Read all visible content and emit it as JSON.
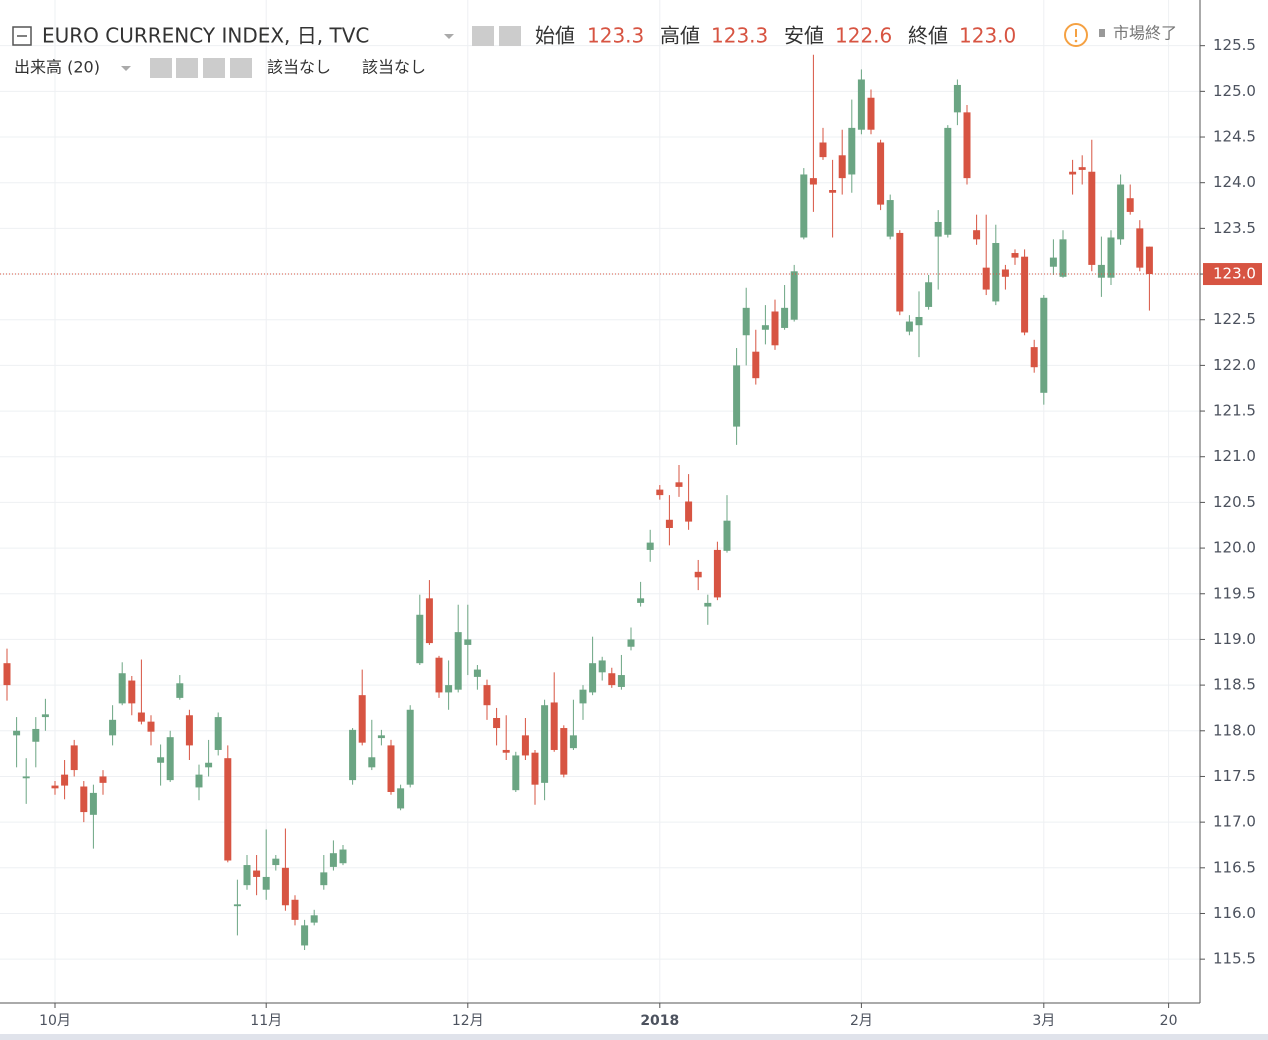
{
  "chart_data": {
    "type": "candlestick",
    "legend": {
      "title": "EURO CURRENCY INDEX, 日, TVC",
      "open_label": "始値",
      "open": "123.3",
      "high_label": "高値",
      "high": "123.3",
      "low_label": "安値",
      "low": "122.6",
      "close_label": "終値",
      "close": "123.0",
      "status": "市場終了",
      "volume": "出来高 (20)",
      "volume_values": [
        "該当なし",
        "該当なし"
      ]
    },
    "categories": [
      null,
      null,
      null,
      null,
      null,
      "10月",
      null,
      null,
      null,
      null,
      null,
      null,
      null,
      null,
      null,
      null,
      null,
      null,
      null,
      null,
      null,
      null,
      null,
      null,
      null,
      null,
      null,
      "11月",
      null,
      null,
      null,
      null,
      null,
      null,
      null,
      null,
      null,
      null,
      null,
      null,
      null,
      null,
      null,
      null,
      null,
      null,
      null,
      null,
      "12月",
      null,
      null,
      null,
      null,
      null,
      null,
      null,
      null,
      null,
      null,
      null,
      null,
      null,
      null,
      null,
      null,
      null,
      null,
      null,
      "2018",
      null,
      null,
      null,
      null,
      null,
      null,
      null,
      null,
      null,
      null,
      null,
      null,
      null,
      null,
      null,
      null,
      null,
      null,
      null,
      null,
      "2月",
      null,
      null,
      null,
      null,
      null,
      null,
      null,
      null,
      null,
      null,
      null,
      null,
      null,
      null,
      null,
      null,
      null,
      null,
      "3月",
      null,
      null,
      null,
      null,
      null,
      null,
      null,
      null,
      null,
      null,
      null,
      null,
      "20"
    ],
    "open": [
      118.74,
      117.95,
      117.48,
      117.88,
      118.15,
      117.4,
      117.52,
      117.84,
      117.39,
      117.08,
      117.5,
      117.95,
      118.3,
      118.55,
      118.2,
      118.1,
      117.65,
      117.46,
      118.36,
      118.17,
      117.38,
      117.6,
      117.79,
      117.7,
      116.08,
      116.31,
      116.47,
      116.26,
      116.53,
      116.5,
      116.15,
      115.65,
      115.9,
      116.31,
      116.51,
      116.55,
      117.46,
      118.39,
      117.6,
      117.92,
      117.84,
      117.15,
      117.41,
      118.74,
      119.45,
      118.8,
      118.42,
      118.45,
      118.94,
      118.59,
      118.5,
      118.14,
      117.79,
      117.35,
      117.95,
      117.76,
      117.43,
      118.31,
      118.03,
      117.81,
      118.3,
      118.42,
      118.64,
      118.63,
      118.48,
      118.92,
      119.4,
      119.98,
      120.64,
      120.31,
      120.72,
      120.51,
      119.74,
      119.36,
      119.98,
      119.97,
      121.33,
      122.33,
      122.15,
      122.39,
      122.59,
      122.41,
      122.5,
      123.4,
      124.05,
      124.44,
      123.92,
      124.3,
      124.09,
      124.58,
      124.93,
      124.44,
      123.41,
      123.45,
      122.37,
      122.44,
      122.64,
      123.41,
      123.43,
      124.77,
      124.77,
      123.48,
      123.07,
      122.7,
      123.05,
      123.23,
      123.19,
      122.2,
      121.7,
      123.08,
      122.97,
      124.12,
      124.17,
      124.12,
      122.96,
      122.96,
      123.38,
      123.83,
      123.5,
      123.3,
      null,
      null
    ],
    "high": [
      118.9,
      118.15,
      117.7,
      118.15,
      118.35,
      117.45,
      117.68,
      117.9,
      117.45,
      117.41,
      117.57,
      118.28,
      118.75,
      118.6,
      118.78,
      118.17,
      117.85,
      118.0,
      118.61,
      118.23,
      117.63,
      117.9,
      118.2,
      117.84,
      116.37,
      116.64,
      116.64,
      116.92,
      116.64,
      116.93,
      116.2,
      115.93,
      116.04,
      116.64,
      116.8,
      116.75,
      118.03,
      118.67,
      118.12,
      118.01,
      117.9,
      117.41,
      118.28,
      119.49,
      119.65,
      118.82,
      118.77,
      119.38,
      119.38,
      118.72,
      118.56,
      118.25,
      118.17,
      117.77,
      118.14,
      117.79,
      118.34,
      118.64,
      118.06,
      118.34,
      118.5,
      119.03,
      118.81,
      118.69,
      118.83,
      119.13,
      119.63,
      120.2,
      120.69,
      120.58,
      120.91,
      120.81,
      119.87,
      119.49,
      120.07,
      120.58,
      122.19,
      122.85,
      122.39,
      122.66,
      122.72,
      122.88,
      123.1,
      124.16,
      125.4,
      124.6,
      124.25,
      124.58,
      124.91,
      125.24,
      125.02,
      124.47,
      123.87,
      123.48,
      122.55,
      122.81,
      122.99,
      123.7,
      124.63,
      125.13,
      124.85,
      123.65,
      123.65,
      123.54,
      123.1,
      123.27,
      123.27,
      122.28,
      122.77,
      123.38,
      123.48,
      124.25,
      124.3,
      124.47,
      123.41,
      123.48,
      124.09,
      123.98,
      123.59,
      123.3,
      null,
      null
    ],
    "low": [
      118.33,
      117.6,
      117.2,
      117.6,
      118.0,
      117.3,
      117.25,
      117.5,
      117.0,
      116.71,
      117.3,
      117.84,
      118.28,
      118.17,
      118.07,
      117.84,
      117.4,
      117.44,
      118.34,
      117.68,
      117.24,
      117.5,
      117.73,
      116.56,
      115.76,
      116.26,
      116.2,
      116.15,
      116.47,
      116.03,
      115.87,
      115.6,
      115.87,
      116.26,
      116.47,
      116.53,
      117.41,
      117.84,
      117.57,
      117.84,
      117.3,
      117.13,
      117.38,
      118.72,
      118.94,
      118.36,
      118.23,
      118.42,
      118.61,
      118.45,
      118.12,
      117.84,
      117.68,
      117.33,
      117.68,
      117.19,
      117.24,
      117.77,
      117.49,
      117.79,
      118.12,
      118.39,
      118.55,
      118.47,
      118.45,
      118.88,
      119.36,
      119.85,
      120.53,
      120.03,
      120.56,
      120.2,
      119.54,
      119.16,
      119.43,
      119.95,
      121.13,
      122.0,
      121.79,
      122.23,
      122.17,
      122.39,
      122.48,
      123.38,
      123.68,
      124.25,
      123.4,
      123.87,
      123.89,
      124.53,
      124.53,
      123.7,
      123.38,
      122.55,
      122.33,
      122.09,
      122.61,
      122.83,
      123.4,
      124.63,
      123.98,
      123.32,
      122.77,
      122.66,
      122.83,
      123.1,
      122.33,
      121.92,
      121.57,
      122.99,
      122.96,
      123.87,
      123.98,
      123.03,
      122.75,
      122.88,
      123.32,
      123.65,
      123.03,
      122.6,
      null,
      null
    ],
    "close": [
      118.5,
      118.0,
      117.5,
      118.02,
      118.18,
      117.37,
      117.4,
      117.57,
      117.11,
      117.32,
      117.43,
      118.12,
      118.63,
      118.3,
      118.1,
      117.99,
      117.71,
      117.93,
      118.52,
      117.84,
      117.52,
      117.65,
      118.15,
      116.58,
      116.1,
      116.53,
      116.4,
      116.4,
      116.6,
      116.09,
      115.93,
      115.87,
      115.98,
      116.45,
      116.66,
      116.7,
      118.01,
      117.87,
      117.71,
      117.95,
      117.33,
      117.37,
      118.23,
      119.27,
      118.96,
      118.42,
      118.5,
      119.08,
      119.0,
      118.67,
      118.28,
      118.03,
      117.76,
      117.73,
      117.73,
      117.41,
      118.28,
      117.79,
      117.52,
      117.95,
      118.45,
      118.74,
      118.77,
      118.5,
      118.61,
      119.0,
      119.45,
      120.06,
      120.58,
      120.22,
      120.67,
      120.29,
      119.68,
      119.4,
      119.46,
      120.3,
      122.0,
      122.63,
      121.86,
      122.44,
      122.22,
      122.63,
      123.03,
      124.09,
      123.98,
      124.28,
      123.89,
      124.05,
      124.6,
      125.13,
      124.58,
      123.76,
      123.81,
      122.59,
      122.48,
      122.53,
      122.91,
      123.57,
      124.6,
      125.07,
      124.05,
      123.38,
      122.83,
      123.34,
      122.97,
      123.18,
      122.36,
      121.98,
      122.74,
      123.18,
      123.38,
      124.09,
      124.14,
      123.1,
      123.1,
      123.4,
      123.98,
      123.68,
      123.07,
      123.0,
      null,
      null
    ],
    "up_color": "#6ba583",
    "down_color": "#d75442",
    "last_price": {
      "value": 123.0,
      "label": "123.0"
    },
    "ylim": [
      115.02,
      126.0
    ],
    "yticks": [
      115.5,
      {
        "value": 116,
        "label": "116.0"
      },
      116.5,
      {
        "value": 117,
        "label": "117.0"
      },
      117.5,
      {
        "value": 118,
        "label": "118.0"
      },
      118.5,
      {
        "value": 119,
        "label": "119.0"
      },
      119.5,
      {
        "value": 120,
        "label": "120.0"
      },
      120.5,
      {
        "value": 121,
        "label": "121.0"
      },
      121.5,
      {
        "value": 122,
        "label": "122.0"
      },
      122.5,
      {
        "value": 123,
        "label": "123.0"
      },
      123.5,
      {
        "value": 124,
        "label": "124.0"
      },
      124.5,
      {
        "value": 125,
        "label": "125.0"
      },
      125.5
    ],
    "grid": true
  }
}
